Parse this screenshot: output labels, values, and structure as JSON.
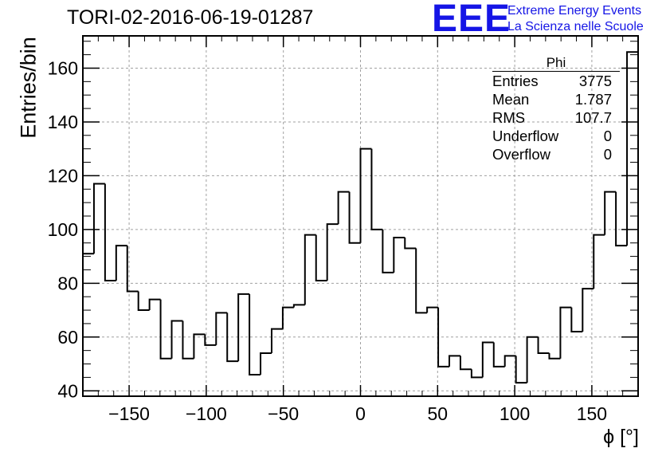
{
  "chart_data": {
    "type": "histogram",
    "title": "TORI-02-2016-06-19-01287",
    "xlabel": "ϕ [°]",
    "ylabel": "Entries/bin",
    "xlim": [
      -180,
      180
    ],
    "ylim": [
      38,
      172
    ],
    "bin_width": 7.2,
    "grid": true,
    "x_ticks": [
      -150,
      -100,
      -50,
      0,
      50,
      100,
      150
    ],
    "x_tick_labels": [
      "−150",
      "−100",
      "−50",
      "0",
      "50",
      "100",
      "150"
    ],
    "y_ticks": [
      40,
      60,
      80,
      100,
      120,
      140,
      160
    ],
    "y_tick_labels": [
      "40",
      "60",
      "80",
      "100",
      "120",
      "140",
      "160"
    ],
    "values": [
      91,
      117,
      81,
      94,
      77,
      70,
      74,
      52,
      66,
      52,
      61,
      57,
      69,
      51,
      76,
      46,
      54,
      63,
      71,
      72,
      98,
      81,
      102,
      114,
      95,
      130,
      100,
      84,
      97,
      93,
      69,
      71,
      49,
      53,
      48,
      45,
      58,
      49,
      53,
      43,
      60,
      54,
      52,
      71,
      62,
      78,
      98,
      114,
      94,
      166
    ]
  },
  "stats_box": {
    "title": "Phi",
    "rows": [
      {
        "label": "Entries",
        "value": "3775"
      },
      {
        "label": "Mean",
        "value": "1.787"
      },
      {
        "label": "RMS",
        "value": "107.7"
      },
      {
        "label": "Underflow",
        "value": "0"
      },
      {
        "label": "Overflow",
        "value": "0"
      }
    ]
  },
  "logo": {
    "mark": "EEE",
    "line1": "Extreme Energy Events",
    "line2": "La Scienza nelle Scuole"
  },
  "colors": {
    "logo": "#1515e6",
    "line": "#000000",
    "grid": "#a0a0a0"
  }
}
